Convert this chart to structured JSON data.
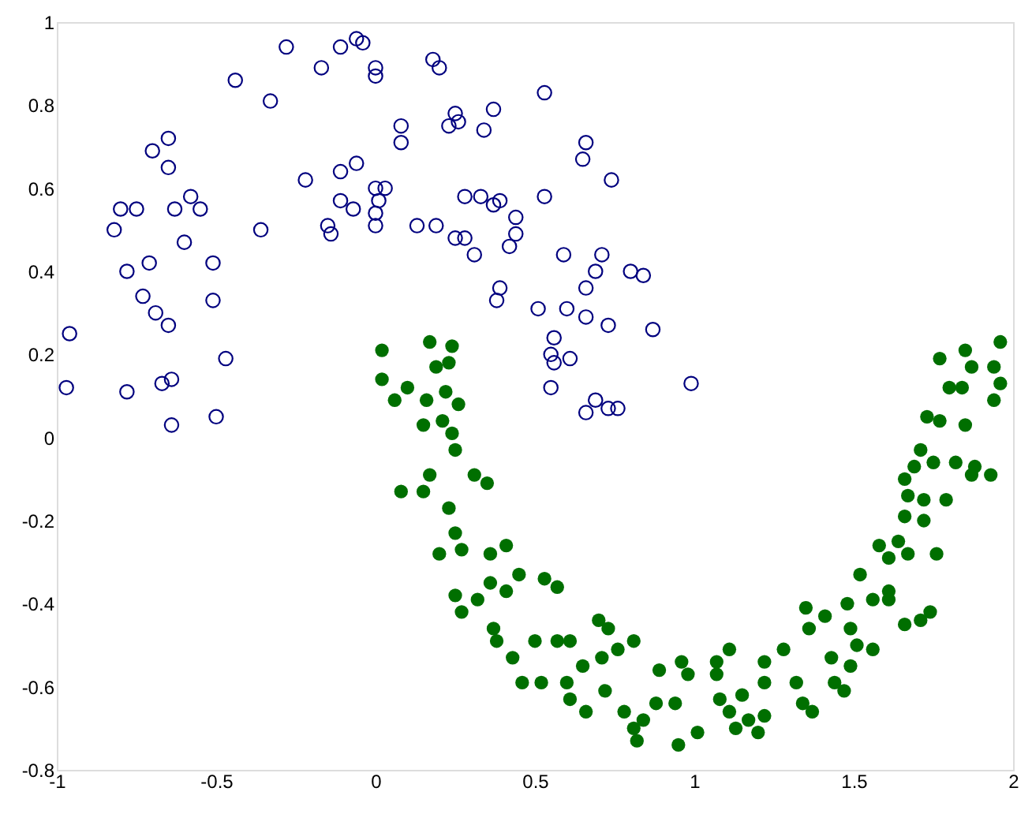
{
  "chart_data": {
    "type": "scatter",
    "xlim": [
      -1,
      2
    ],
    "xticks": [
      -1,
      -0.5,
      0,
      0.5,
      1,
      1.5,
      2
    ],
    "ylim": [
      -0.8,
      1
    ],
    "yticks": [
      -0.8,
      -0.6,
      -0.4,
      -0.2,
      0,
      0.2,
      0.4,
      0.6,
      0.8,
      1
    ],
    "marker": "circle",
    "series": [
      {
        "color": "#00007f",
        "x": [
          -0.96,
          -0.97,
          -0.82,
          -0.8,
          -0.75,
          -0.78,
          -0.78,
          -0.71,
          -0.73,
          -0.7,
          -0.65,
          -0.65,
          -0.69,
          -0.65,
          -0.67,
          -0.64,
          -0.64,
          -0.63,
          -0.58,
          -0.6,
          -0.55,
          -0.51,
          -0.51,
          -0.47,
          -0.5,
          -0.44,
          -0.36,
          -0.33,
          -0.28,
          -0.22,
          -0.17,
          -0.15,
          -0.14,
          -0.11,
          -0.11,
          -0.11,
          -0.07,
          -0.06,
          -0.06,
          -0.04,
          0.0,
          0.0,
          0.0,
          0.01,
          0.0,
          0.0,
          0.03,
          0.08,
          0.08,
          0.13,
          0.18,
          0.19,
          0.2,
          0.23,
          0.25,
          0.26,
          0.25,
          0.28,
          0.28,
          0.31,
          0.33,
          0.34,
          0.37,
          0.37,
          0.39,
          0.39,
          0.38,
          0.44,
          0.44,
          0.42,
          0.51,
          0.53,
          0.53,
          0.56,
          0.55,
          0.56,
          0.55,
          0.59,
          0.6,
          0.61,
          0.65,
          0.66,
          0.66,
          0.66,
          0.69,
          0.71,
          0.73,
          0.66,
          0.69,
          0.73,
          0.76,
          0.74,
          0.8,
          0.84,
          0.87,
          0.99
        ],
        "values": [
          0.25,
          0.12,
          0.5,
          0.55,
          0.55,
          0.4,
          0.11,
          0.42,
          0.34,
          0.69,
          0.72,
          0.65,
          0.3,
          0.27,
          0.13,
          0.14,
          0.03,
          0.55,
          0.58,
          0.47,
          0.55,
          0.42,
          0.33,
          0.19,
          0.05,
          0.86,
          0.5,
          0.81,
          0.94,
          0.62,
          0.89,
          0.51,
          0.49,
          0.94,
          0.64,
          0.57,
          0.55,
          0.66,
          0.96,
          0.95,
          0.89,
          0.87,
          0.6,
          0.57,
          0.54,
          0.51,
          0.6,
          0.71,
          0.75,
          0.51,
          0.91,
          0.51,
          0.89,
          0.75,
          0.78,
          0.76,
          0.48,
          0.58,
          0.48,
          0.44,
          0.58,
          0.74,
          0.79,
          0.56,
          0.57,
          0.36,
          0.33,
          0.53,
          0.49,
          0.46,
          0.31,
          0.83,
          0.58,
          0.24,
          0.2,
          0.18,
          0.12,
          0.44,
          0.31,
          0.19,
          0.67,
          0.71,
          0.36,
          0.29,
          0.4,
          0.44,
          0.27,
          0.06,
          0.09,
          0.07,
          0.07,
          0.62,
          0.4,
          0.39,
          0.26,
          0.13
        ]
      },
      {
        "color": "#006f00",
        "x": [
          0.02,
          0.17,
          0.24,
          0.02,
          0.06,
          0.1,
          0.19,
          0.23,
          0.16,
          0.22,
          0.26,
          0.15,
          0.21,
          0.24,
          0.25,
          0.17,
          0.08,
          0.15,
          0.31,
          0.35,
          0.23,
          0.25,
          0.2,
          0.27,
          0.36,
          0.41,
          0.25,
          0.27,
          0.32,
          0.36,
          0.41,
          0.45,
          0.53,
          0.57,
          0.37,
          0.38,
          0.43,
          0.46,
          0.52,
          0.5,
          0.57,
          0.61,
          0.65,
          0.6,
          0.61,
          0.66,
          0.72,
          0.7,
          0.73,
          0.71,
          0.76,
          0.81,
          0.78,
          0.81,
          0.84,
          0.82,
          0.88,
          0.94,
          0.89,
          0.96,
          0.98,
          0.95,
          1.01,
          1.07,
          1.07,
          1.11,
          1.08,
          1.11,
          1.13,
          1.17,
          1.2,
          1.22,
          1.15,
          1.22,
          1.22,
          1.28,
          1.32,
          1.34,
          1.37,
          1.36,
          1.35,
          1.41,
          1.43,
          1.44,
          1.47,
          1.48,
          1.49,
          1.51,
          1.56,
          1.49,
          1.52,
          1.56,
          1.61,
          1.61,
          1.66,
          1.71,
          1.74,
          1.58,
          1.64,
          1.61,
          1.67,
          1.76,
          1.66,
          1.72,
          1.67,
          1.72,
          1.79,
          1.66,
          1.69,
          1.71,
          1.75,
          1.82,
          1.87,
          1.93,
          1.88,
          1.73,
          1.77,
          1.85,
          1.8,
          1.84,
          1.87,
          1.77,
          1.85,
          1.96,
          1.94,
          1.96,
          1.94
        ],
        "values": [
          0.21,
          0.23,
          0.22,
          0.14,
          0.09,
          0.12,
          0.17,
          0.18,
          0.09,
          0.11,
          0.08,
          0.03,
          0.04,
          0.01,
          -0.03,
          -0.09,
          -0.13,
          -0.13,
          -0.09,
          -0.11,
          -0.17,
          -0.23,
          -0.28,
          -0.27,
          -0.28,
          -0.26,
          -0.38,
          -0.42,
          -0.39,
          -0.35,
          -0.37,
          -0.33,
          -0.34,
          -0.36,
          -0.46,
          -0.49,
          -0.53,
          -0.59,
          -0.59,
          -0.49,
          -0.49,
          -0.49,
          -0.55,
          -0.59,
          -0.63,
          -0.66,
          -0.61,
          -0.44,
          -0.46,
          -0.53,
          -0.51,
          -0.49,
          -0.66,
          -0.7,
          -0.68,
          -0.73,
          -0.64,
          -0.64,
          -0.56,
          -0.54,
          -0.57,
          -0.74,
          -0.71,
          -0.54,
          -0.57,
          -0.51,
          -0.63,
          -0.66,
          -0.7,
          -0.68,
          -0.71,
          -0.67,
          -0.62,
          -0.59,
          -0.54,
          -0.51,
          -0.59,
          -0.64,
          -0.66,
          -0.46,
          -0.41,
          -0.43,
          -0.53,
          -0.59,
          -0.61,
          -0.4,
          -0.46,
          -0.5,
          -0.51,
          -0.55,
          -0.33,
          -0.39,
          -0.37,
          -0.39,
          -0.45,
          -0.44,
          -0.42,
          -0.26,
          -0.25,
          -0.29,
          -0.28,
          -0.28,
          -0.19,
          -0.2,
          -0.14,
          -0.15,
          -0.15,
          -0.1,
          -0.07,
          -0.03,
          -0.06,
          -0.06,
          -0.09,
          -0.09,
          -0.07,
          0.05,
          0.04,
          0.03,
          0.12,
          0.12,
          0.17,
          0.19,
          0.21,
          0.23,
          0.17,
          0.13,
          0.09
        ]
      }
    ]
  }
}
